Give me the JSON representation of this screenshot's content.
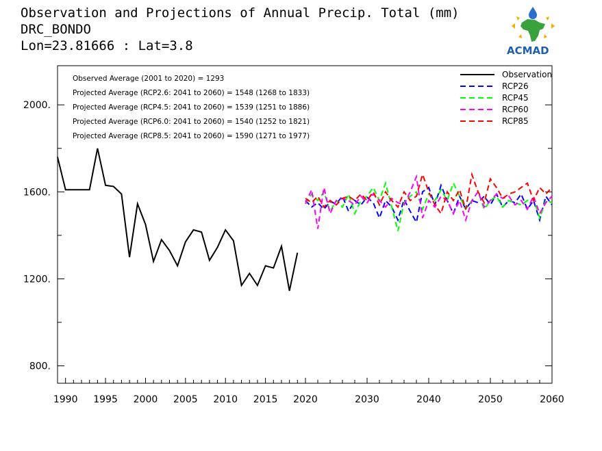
{
  "chart_data": {
    "type": "line",
    "title": "Observation and Projections of Annual Precip. Total (mm)",
    "subtitle_lines": [
      "DRC_BONDO",
      "Lon=23.81666 : Lat=3.8"
    ],
    "xlim": [
      1989,
      2060
    ],
    "ylim": [
      720,
      2180
    ],
    "grid": false,
    "legend_position": "top-right",
    "x_ticks": [
      {
        "value": 1990,
        "label": "1990"
      },
      {
        "value": 1995,
        "label": "1995"
      },
      {
        "value": 2000,
        "label": "2000"
      },
      {
        "value": 2005,
        "label": "2005"
      },
      {
        "value": 2010,
        "label": "2010"
      },
      {
        "value": 2015,
        "label": "2015"
      },
      {
        "value": 2020,
        "label": "2020"
      },
      {
        "value": 2030,
        "label": "2030"
      },
      {
        "value": 2040,
        "label": "2040"
      },
      {
        "value": 2050,
        "label": "2050"
      },
      {
        "value": 2060,
        "label": "2060"
      }
    ],
    "y_ticks": [
      {
        "value": 800,
        "label": "800."
      },
      {
        "value": 1200,
        "label": "1200."
      },
      {
        "value": 1600,
        "label": "1600."
      },
      {
        "value": 2000,
        "label": "2000."
      }
    ],
    "annotations": [
      "Observed Average (2001 to 2020) = 1293",
      "Projected Average (RCP2.6: 2041 to 2060) = 1548 (1268 to 1833)",
      "Projected Average (RCP4.5: 2041 to 2060) = 1539 (1251 to 1886)",
      "Projected Average (RCP6.0: 2041 to 2060) = 1540 (1252 to 1821)",
      "Projected Average (RCP8.5: 2041 to 2060) = 1590 (1271 to 1977)"
    ],
    "series": [
      {
        "name": "Observation",
        "color": "#000000",
        "dashed": false,
        "x": [
          1989,
          1990,
          1991,
          1992,
          1993,
          1994,
          1995,
          1996,
          1997,
          1998,
          1999,
          2000,
          2001,
          2002,
          2003,
          2004,
          2005,
          2006,
          2007,
          2008,
          2009,
          2010,
          2011,
          2012,
          2013,
          2014,
          2015,
          2016,
          2017,
          2018,
          2019,
          2020
        ],
        "values": [
          1760,
          1610,
          1610,
          1610,
          1610,
          1800,
          1630,
          1625,
          1590,
          1300,
          1545,
          1450,
          1280,
          1380,
          1330,
          1260,
          1370,
          1425,
          1415,
          1285,
          1345,
          1425,
          1375,
          1170,
          1225,
          1170,
          1260,
          1250,
          1350,
          1145,
          1320,
          null
        ]
      },
      {
        "name": "RCP26",
        "color": "#0000ff",
        "dashed": true,
        "x": [
          2020,
          2021,
          2022,
          2023,
          2024,
          2025,
          2026,
          2027,
          2028,
          2029,
          2030,
          2031,
          2032,
          2033,
          2034,
          2035,
          2036,
          2037,
          2038,
          2039,
          2040,
          2041,
          2042,
          2043,
          2044,
          2045,
          2046,
          2047,
          2048,
          2049,
          2050,
          2051,
          2052,
          2053,
          2054,
          2055,
          2056,
          2057,
          2058,
          2059,
          2060
        ],
        "values": [
          1560,
          1530,
          1550,
          1520,
          1555,
          1545,
          1580,
          1510,
          1560,
          1540,
          1575,
          1550,
          1480,
          1560,
          1530,
          1470,
          1565,
          1510,
          1460,
          1600,
          1620,
          1540,
          1630,
          1560,
          1500,
          1580,
          1520,
          1560,
          1550,
          1580,
          1540,
          1590,
          1530,
          1560,
          1550,
          1590,
          1520,
          1560,
          1470,
          1580,
          1540
        ]
      },
      {
        "name": "RCP45",
        "color": "#00ff00",
        "dashed": true,
        "x": [
          2020,
          2021,
          2022,
          2023,
          2024,
          2025,
          2026,
          2027,
          2028,
          2029,
          2030,
          2031,
          2032,
          2033,
          2034,
          2035,
          2036,
          2037,
          2038,
          2039,
          2040,
          2041,
          2042,
          2043,
          2044,
          2045,
          2046,
          2047,
          2048,
          2049,
          2050,
          2051,
          2052,
          2053,
          2054,
          2055,
          2056,
          2057,
          2058,
          2059,
          2060
        ],
        "values": [
          1545,
          1590,
          1560,
          1600,
          1510,
          1560,
          1530,
          1590,
          1500,
          1560,
          1580,
          1620,
          1560,
          1640,
          1530,
          1420,
          1550,
          1580,
          1600,
          1520,
          1590,
          1560,
          1610,
          1560,
          1640,
          1580,
          1520,
          1560,
          1600,
          1520,
          1560,
          1580,
          1530,
          1560,
          1550,
          1540,
          1560,
          1570,
          1480,
          1560,
          1550
        ]
      },
      {
        "name": "RCP60",
        "color": "#ff00ff",
        "dashed": true,
        "x": [
          2020,
          2021,
          2022,
          2023,
          2024,
          2025,
          2026,
          2027,
          2028,
          2029,
          2030,
          2031,
          2032,
          2033,
          2034,
          2035,
          2036,
          2037,
          2038,
          2039,
          2040,
          2041,
          2042,
          2043,
          2044,
          2045,
          2046,
          2047,
          2048,
          2049,
          2050,
          2051,
          2052,
          2053,
          2054,
          2055,
          2056,
          2057,
          2058,
          2059,
          2060
        ],
        "values": [
          1545,
          1610,
          1430,
          1620,
          1500,
          1560,
          1570,
          1560,
          1540,
          1580,
          1550,
          1590,
          1560,
          1530,
          1570,
          1550,
          1540,
          1600,
          1670,
          1480,
          1560,
          1530,
          1580,
          1560,
          1500,
          1560,
          1470,
          1560,
          1600,
          1530,
          1560,
          1590,
          1570,
          1580,
          1540,
          1560,
          1520,
          1580,
          1500,
          1550,
          1580
        ]
      },
      {
        "name": "RCP85",
        "color": "#ff0000",
        "dashed": true,
        "x": [
          2020,
          2021,
          2022,
          2023,
          2024,
          2025,
          2026,
          2027,
          2028,
          2029,
          2030,
          2031,
          2032,
          2033,
          2034,
          2035,
          2036,
          2037,
          2038,
          2039,
          2040,
          2041,
          2042,
          2043,
          2044,
          2045,
          2046,
          2047,
          2048,
          2049,
          2050,
          2051,
          2052,
          2053,
          2054,
          2055,
          2056,
          2057,
          2058,
          2059,
          2060
        ],
        "values": [
          1570,
          1550,
          1580,
          1530,
          1560,
          1540,
          1570,
          1580,
          1560,
          1590,
          1560,
          1600,
          1540,
          1600,
          1560,
          1530,
          1600,
          1560,
          1580,
          1680,
          1600,
          1540,
          1500,
          1600,
          1560,
          1610,
          1520,
          1680,
          1600,
          1550,
          1660,
          1620,
          1570,
          1590,
          1600,
          1620,
          1640,
          1560,
          1620,
          1590,
          1620
        ]
      }
    ]
  },
  "logo": {
    "text": "ACMAD",
    "colors": {
      "drop": "#2a6fc9",
      "africa": "#3aa23a",
      "rays": "#f0b000",
      "text": "#1f5fae"
    }
  }
}
